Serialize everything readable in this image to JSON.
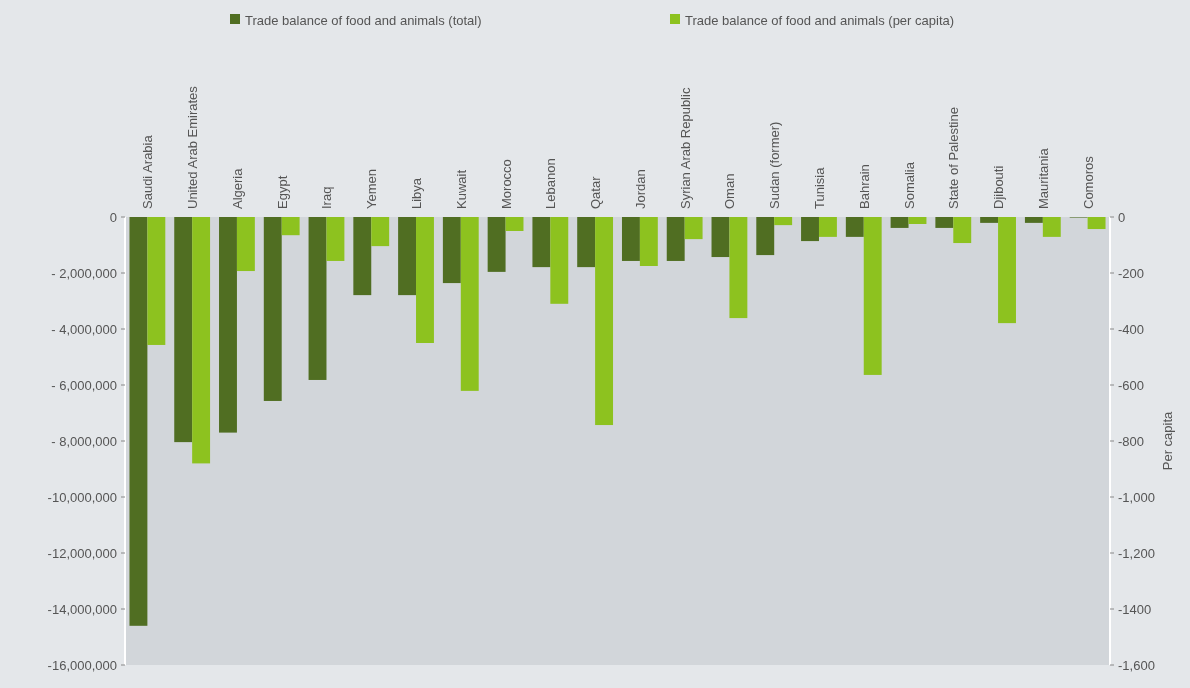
{
  "chart_data": {
    "type": "bar",
    "categories": [
      "Saudi Arabia",
      "United Arab Emirates",
      "Algeria",
      "Egypt",
      "Iraq",
      "Yemen",
      "Libya",
      "Kuwait",
      "Morocco",
      "Lebanon",
      "Qatar",
      "Jordan",
      "Syrian Arab Republic",
      "Oman",
      "Sudan (former)",
      "Tunisia",
      "Bahrain",
      "Somalia",
      "State of Palestine",
      "Djibouti",
      "Mauritania",
      "Comoros"
    ],
    "series": [
      {
        "name": "Trade balance of food and animals (total)",
        "color": "#506e22",
        "values": [
          -14600000,
          -8040000,
          -7700000,
          -6570000,
          -5820000,
          -2790000,
          -2790000,
          -2360000,
          -1960000,
          -1790000,
          -1790000,
          -1570000,
          -1570000,
          -1430000,
          -1360000,
          -860000,
          -710000,
          -390000,
          -390000,
          -210000,
          -210000,
          -20000
        ]
      },
      {
        "name": "Trade balance of food and animals (per capita)",
        "color": "#8dc21f",
        "axis": "y2",
        "values": [
          -457,
          -880,
          -193,
          -65,
          -157,
          -104,
          -450,
          -621,
          -50,
          -310,
          -743,
          -175,
          -79,
          -361,
          -29,
          -71,
          -564,
          -25,
          -93,
          -379,
          -71,
          -43
        ]
      }
    ],
    "ylim": [
      -16000000,
      0
    ],
    "yticks": [
      0,
      {
        "value": -2000000,
        "label": "- 2,000,000"
      },
      {
        "value": -4000000,
        "label": "- 4,000,000"
      },
      {
        "value": -6000000,
        "label": "- 6,000,000"
      },
      {
        "value": -8000000,
        "label": "- 8,000,000"
      },
      {
        "value": -10000000,
        "label": "-10,000,000"
      },
      {
        "value": -12000000,
        "label": "-12,000,000"
      },
      {
        "value": -14000000,
        "label": "-14,000,000"
      },
      {
        "value": -16000000,
        "label": "-16,000,000"
      }
    ],
    "y2lim": [
      -1600,
      0
    ],
    "y2ticks": [
      0,
      -200,
      -400,
      -600,
      -800,
      {
        "value": -1000,
        "label": "-1,000"
      },
      {
        "value": -1200,
        "label": "-1,200"
      },
      -1400,
      {
        "value": -1600,
        "label": "-1,600"
      }
    ],
    "y2label": "Per capita",
    "legend": "top left",
    "grid": false
  }
}
